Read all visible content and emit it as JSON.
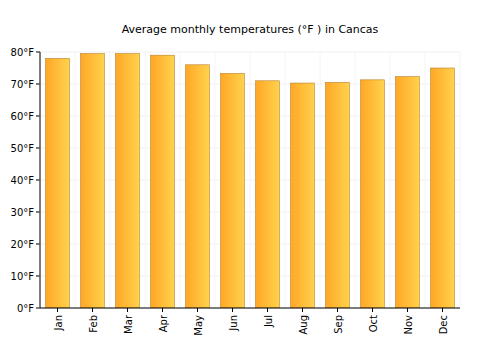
{
  "chart_data": {
    "type": "bar",
    "title": "Average monthly temperatures (°F ) in Cancas",
    "categories": [
      "Jan",
      "Feb",
      "Mar",
      "Apr",
      "May",
      "Jun",
      "Jul",
      "Aug",
      "Sep",
      "Oct",
      "Nov",
      "Dec"
    ],
    "values": [
      78,
      79.5,
      79.5,
      79,
      76,
      73.3,
      71,
      70.3,
      70.5,
      71.3,
      72.3,
      75
    ],
    "color": "#ffa726",
    "ylim": [
      0,
      80
    ],
    "yticks": [
      {
        "value": 0,
        "label": "0°F"
      },
      {
        "value": 10,
        "label": "10°F"
      },
      {
        "value": 20,
        "label": "20°F"
      },
      {
        "value": 30,
        "label": "30°F"
      },
      {
        "value": 40,
        "label": "40°F"
      },
      {
        "value": 50,
        "label": "50°F"
      },
      {
        "value": 60,
        "label": "60°F"
      },
      {
        "value": 70,
        "label": "70°F"
      },
      {
        "value": 80,
        "label": "80°F"
      }
    ],
    "grid": true
  }
}
